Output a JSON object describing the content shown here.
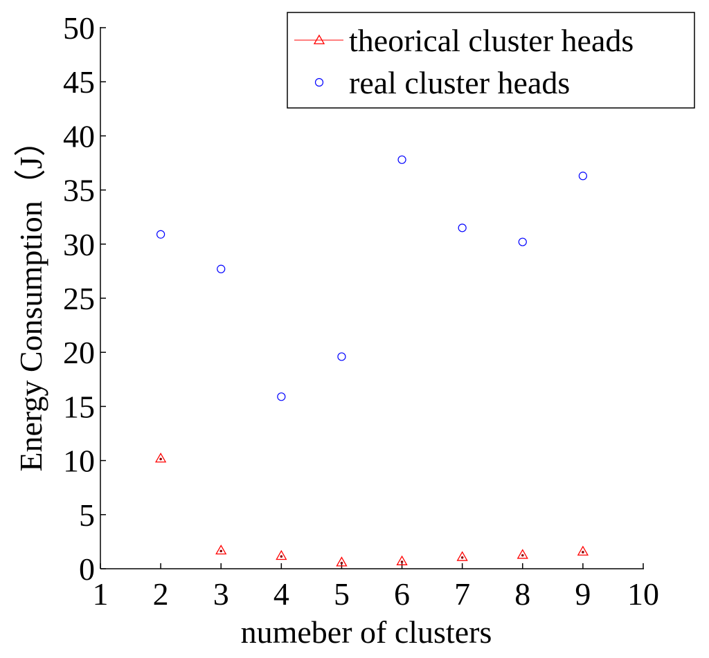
{
  "chart_data": {
    "type": "scatter",
    "xlabel": "numeber of clusters",
    "ylabel": "Energy Consumption（J）",
    "xlim": [
      1,
      10
    ],
    "ylim": [
      0,
      50
    ],
    "xticks": [
      1,
      2,
      3,
      4,
      5,
      6,
      7,
      8,
      9,
      10
    ],
    "yticks": [
      0,
      5,
      10,
      15,
      20,
      25,
      30,
      35,
      40,
      45,
      50
    ],
    "grid": false,
    "legend_position": "top-right",
    "series": [
      {
        "name": "theorical cluster heads",
        "marker": "triangle",
        "color": "#ff0000",
        "x": [
          2,
          3,
          4,
          5,
          6,
          7,
          8,
          9
        ],
        "y": [
          10.2,
          1.7,
          1.2,
          0.6,
          0.7,
          1.1,
          1.3,
          1.6
        ]
      },
      {
        "name": "real cluster heads",
        "marker": "circle",
        "color": "#0000ff",
        "x": [
          2,
          3,
          4,
          5,
          6,
          7,
          8,
          9
        ],
        "y": [
          30.9,
          27.7,
          15.9,
          19.6,
          37.8,
          31.5,
          30.2,
          36.3
        ]
      }
    ]
  }
}
